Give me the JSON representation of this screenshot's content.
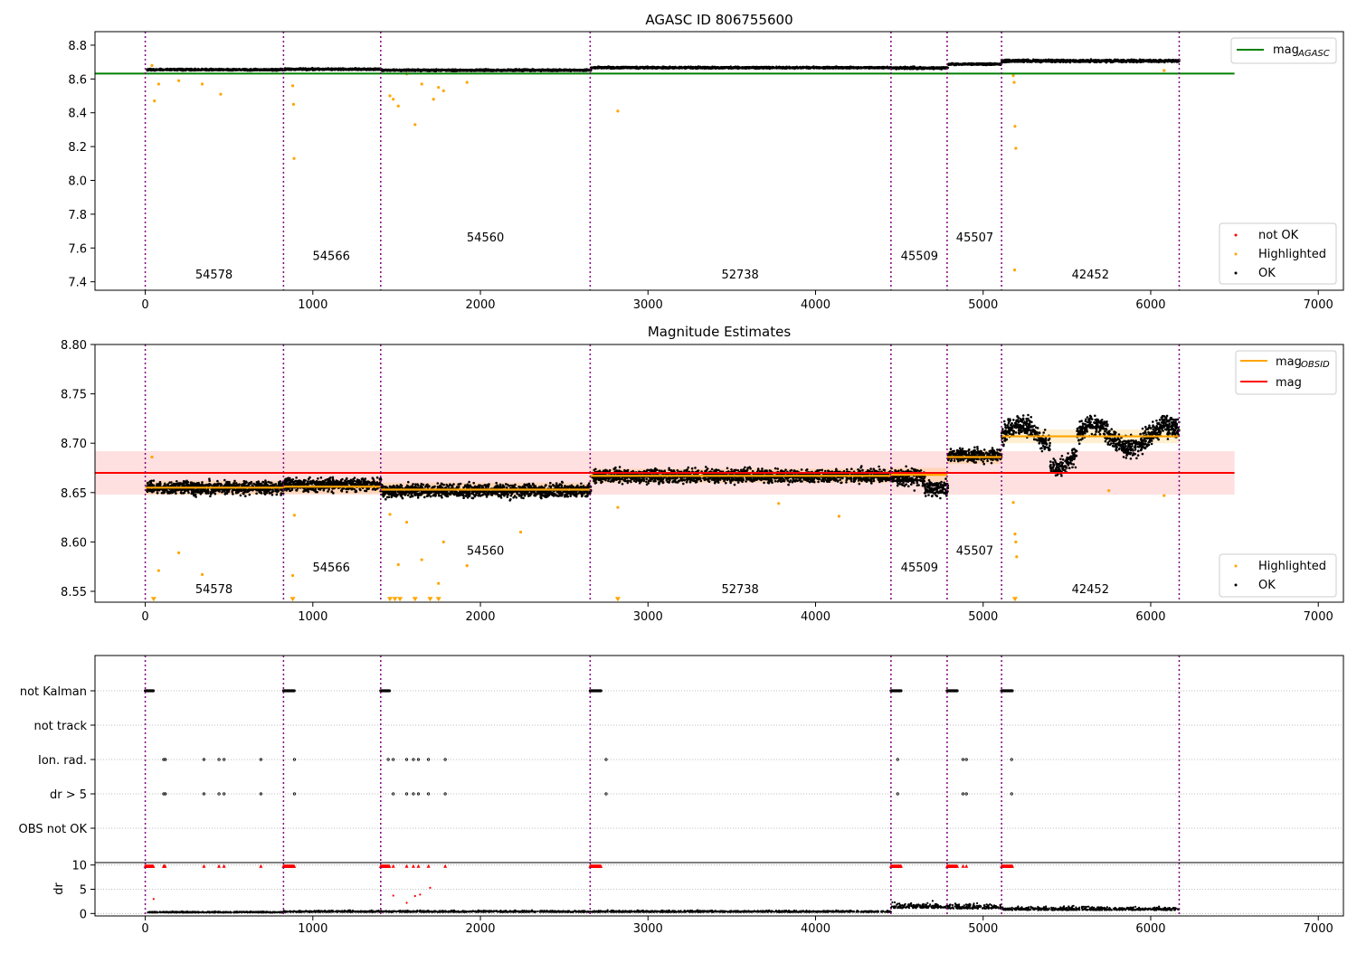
{
  "chart_data": [
    {
      "type": "scatter",
      "title": "AGASC ID 806755600",
      "xlim": [
        -300,
        7150
      ],
      "ylim": [
        7.35,
        8.88
      ],
      "x_ticks": [
        "0",
        "1000",
        "2000",
        "3000",
        "4000",
        "5000",
        "6000",
        "7000"
      ],
      "y_ticks": [
        "7.4",
        "7.6",
        "7.8",
        "8.0",
        "8.2",
        "8.4",
        "8.6",
        "8.8"
      ],
      "y_tick_values": [
        7.4,
        7.6,
        7.8,
        8.0,
        8.2,
        8.4,
        8.6,
        8.8
      ],
      "mag_agasc": 8.632,
      "mag_agasc_x_range": [
        -300,
        6500
      ],
      "legend_top": {
        "label": "mag",
        "sub": "AGASC",
        "color": "#008000"
      },
      "legend_bottom": [
        {
          "label": "not OK",
          "color": "#ff0000"
        },
        {
          "label": "Highlighted",
          "color": "#ffa500"
        },
        {
          "label": "OK",
          "color": "#000000"
        }
      ],
      "series": [
        {
          "name": "OK",
          "color": "#000000",
          "segments": [
            {
              "x0": 10,
              "x1": 830,
              "y": 8.655,
              "spread": 0.012
            },
            {
              "x0": 830,
              "x1": 1410,
              "y": 8.658,
              "spread": 0.012
            },
            {
              "x0": 1410,
              "x1": 2660,
              "y": 8.652,
              "spread": 0.012
            },
            {
              "x0": 2660,
              "x1": 4450,
              "y": 8.667,
              "spread": 0.012
            },
            {
              "x0": 4450,
              "x1": 4790,
              "y": 8.665,
              "spread": 0.015
            },
            {
              "x0": 4790,
              "x1": 5110,
              "y": 8.688,
              "spread": 0.012
            },
            {
              "x0": 5110,
              "x1": 6170,
              "y": 8.707,
              "spread": 0.018
            }
          ]
        },
        {
          "name": "Highlighted",
          "color": "#ffa500",
          "points": [
            [
              40,
              8.68
            ],
            [
              55,
              8.47
            ],
            [
              80,
              8.57
            ],
            [
              200,
              8.59
            ],
            [
              340,
              8.57
            ],
            [
              450,
              8.51
            ],
            [
              880,
              8.56
            ],
            [
              885,
              8.45
            ],
            [
              888,
              8.13
            ],
            [
              1460,
              8.5
            ],
            [
              1480,
              8.48
            ],
            [
              1510,
              8.44
            ],
            [
              1560,
              8.63
            ],
            [
              1610,
              8.33
            ],
            [
              1650,
              8.57
            ],
            [
              1720,
              8.48
            ],
            [
              1750,
              8.55
            ],
            [
              1780,
              8.53
            ],
            [
              1920,
              8.58
            ],
            [
              2820,
              8.41
            ],
            [
              5180,
              8.62
            ],
            [
              5185,
              8.58
            ],
            [
              5190,
              8.32
            ],
            [
              5195,
              8.19
            ],
            [
              5188,
              7.47
            ],
            [
              6080,
              8.65
            ]
          ]
        }
      ],
      "obs_boundaries": [
        0,
        825,
        1405,
        2655,
        4450,
        4785,
        5110,
        6170
      ],
      "obs_labels": [
        {
          "text": "54578",
          "x": 410,
          "y": 7.42
        },
        {
          "text": "54566",
          "x": 1110,
          "y": 7.53
        },
        {
          "text": "54560",
          "x": 2030,
          "y": 7.64
        },
        {
          "text": "52738",
          "x": 3550,
          "y": 7.42
        },
        {
          "text": "45509",
          "x": 4620,
          "y": 7.53
        },
        {
          "text": "45507",
          "x": 4950,
          "y": 7.64
        },
        {
          "text": "42452",
          "x": 5640,
          "y": 7.42
        }
      ]
    },
    {
      "type": "scatter",
      "title": "Magnitude Estimates",
      "xlim": [
        -300,
        7150
      ],
      "ylim": [
        8.539,
        8.8
      ],
      "x_ticks": [
        "0",
        "1000",
        "2000",
        "3000",
        "4000",
        "5000",
        "6000",
        "7000"
      ],
      "y_ticks": [
        "8.55",
        "8.60",
        "8.65",
        "8.70",
        "8.75",
        "8.80"
      ],
      "y_tick_values": [
        8.55,
        8.6,
        8.65,
        8.7,
        8.75,
        8.8
      ],
      "mag": 8.67,
      "mag_band": [
        8.648,
        8.692
      ],
      "mag_x_range": [
        -300,
        6500
      ],
      "mag_obsid_segments": [
        {
          "x0": 0,
          "x1": 825,
          "y": 8.655
        },
        {
          "x0": 825,
          "x1": 1405,
          "y": 8.656
        },
        {
          "x0": 1405,
          "x1": 2655,
          "y": 8.653
        },
        {
          "x0": 2655,
          "x1": 4450,
          "y": 8.667
        },
        {
          "x0": 4450,
          "x1": 4785,
          "y": 8.668
        },
        {
          "x0": 4785,
          "x1": 5110,
          "y": 8.686
        },
        {
          "x0": 5110,
          "x1": 6170,
          "y": 8.707
        }
      ],
      "legend_top": [
        {
          "label": "mag",
          "sub": "OBSID",
          "color": "#ffa500"
        },
        {
          "label": "mag",
          "sub": "",
          "color": "#ff0000"
        }
      ],
      "legend_bottom": [
        {
          "label": "Highlighted",
          "color": "#ffa500"
        },
        {
          "label": "OK",
          "color": "#000000"
        }
      ],
      "highlighted_points": [
        [
          40,
          8.686
        ],
        [
          80,
          8.571
        ],
        [
          200,
          8.589
        ],
        [
          340,
          8.567
        ],
        [
          880,
          8.566
        ],
        [
          890,
          8.627
        ],
        [
          1460,
          8.628
        ],
        [
          1510,
          8.577
        ],
        [
          1560,
          8.62
        ],
        [
          1650,
          8.582
        ],
        [
          1750,
          8.558
        ],
        [
          1780,
          8.6
        ],
        [
          1920,
          8.576
        ],
        [
          2240,
          8.61
        ],
        [
          2820,
          8.635
        ],
        [
          3780,
          8.639
        ],
        [
          4140,
          8.626
        ],
        [
          5180,
          8.64
        ],
        [
          5190,
          8.608
        ],
        [
          5195,
          8.6
        ],
        [
          5200,
          8.585
        ],
        [
          5750,
          8.652
        ],
        [
          6080,
          8.647
        ]
      ],
      "below_range_markers": [
        50,
        880,
        1460,
        1490,
        1520,
        1610,
        1700,
        1750,
        2820,
        5190
      ],
      "obs_boundaries": [
        0,
        825,
        1405,
        2655,
        4450,
        4785,
        5110,
        6170
      ],
      "obs_labels": [
        {
          "text": "54578",
          "x": 410,
          "y": 8.548
        },
        {
          "text": "54566",
          "x": 1110,
          "y": 8.57
        },
        {
          "text": "54560",
          "x": 2030,
          "y": 8.587
        },
        {
          "text": "52738",
          "x": 3550,
          "y": 8.548
        },
        {
          "text": "45509",
          "x": 4620,
          "y": 8.57
        },
        {
          "text": "45507",
          "x": 4950,
          "y": 8.587
        },
        {
          "text": "42452",
          "x": 5640,
          "y": 8.548
        }
      ]
    },
    {
      "type": "scatter",
      "title": "",
      "xlim": [
        -300,
        7150
      ],
      "flag_rows": [
        "not Kalman",
        "not track",
        "Ion. rad.",
        "dr > 5",
        "OBS not OK"
      ],
      "x_ticks": [
        "0",
        "1000",
        "2000",
        "3000",
        "4000",
        "5000",
        "6000",
        "7000"
      ],
      "flag_points": {
        "not Kalman": [
          [
            0,
            50
          ],
          [
            825,
            890
          ],
          [
            1405,
            1460
          ],
          [
            2655,
            2720
          ],
          [
            4450,
            4510
          ],
          [
            4785,
            4845
          ],
          [
            5110,
            5175
          ]
        ],
        "Ion. rad.": [
          110,
          120,
          350,
          440,
          470,
          690,
          890,
          1450,
          1480,
          1560,
          1600,
          1630,
          1690,
          1790,
          2750,
          4490,
          4880,
          4900,
          5170
        ],
        "dr > 5": [
          110,
          120,
          350,
          440,
          470,
          690,
          890,
          1480,
          1560,
          1600,
          1630,
          1690,
          1790,
          2750,
          4490,
          4880,
          4900,
          5170
        ]
      },
      "dr_ylabel": "dr",
      "dr_ylim": [
        -0.5,
        10.5
      ],
      "dr_ticks": [
        "0",
        "5",
        "10"
      ],
      "dr_tick_values": [
        0,
        5,
        10
      ],
      "dr_red_at_10": [
        [
          0,
          50
        ],
        [
          110,
          120
        ],
        [
          350
        ],
        [
          440
        ],
        [
          470
        ],
        [
          690
        ],
        [
          825,
          890
        ],
        [
          1405,
          1460
        ],
        [
          1480
        ],
        [
          1560
        ],
        [
          1600
        ],
        [
          1630
        ],
        [
          1690
        ],
        [
          1790
        ],
        [
          2655,
          2720
        ],
        [
          4450,
          4510
        ],
        [
          4785,
          4845
        ],
        [
          4880
        ],
        [
          4900
        ],
        [
          5110,
          5175
        ]
      ],
      "dr_red_points": [
        [
          50,
          3.0
        ],
        [
          1480,
          3.7
        ],
        [
          1560,
          2.2
        ],
        [
          1610,
          3.6
        ],
        [
          1640,
          3.9
        ],
        [
          1700,
          5.3
        ]
      ],
      "dr_ok_bands": [
        {
          "x0": 10,
          "x1": 825,
          "y": 0.2
        },
        {
          "x0": 825,
          "x1": 1405,
          "y": 0.3
        },
        {
          "x0": 1405,
          "x1": 2655,
          "y": 0.3
        },
        {
          "x0": 2655,
          "x1": 4450,
          "y": 0.3
        },
        {
          "x0": 4450,
          "x1": 4785,
          "y": 1.1
        },
        {
          "x0": 4785,
          "x1": 5110,
          "y": 1.0
        },
        {
          "x0": 5110,
          "x1": 6170,
          "y": 0.7
        }
      ],
      "obs_boundaries": [
        0,
        825,
        1405,
        2655,
        4450,
        4785,
        5110,
        6170
      ]
    }
  ]
}
